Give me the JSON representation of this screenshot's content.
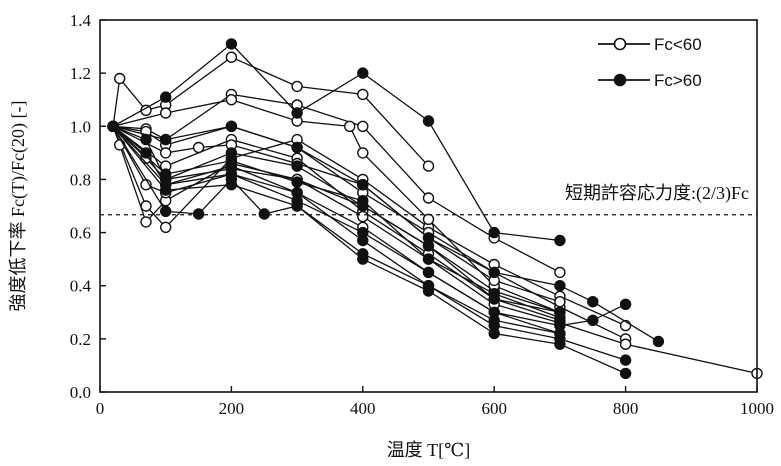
{
  "chart_data": {
    "type": "line",
    "title": "",
    "xlabel": "温度 T[℃]",
    "ylabel": "強度低下率 Fc(T)/Fc(20) [-]",
    "xlim": [
      0,
      1000
    ],
    "ylim": [
      0,
      1.4
    ],
    "xticks": [
      0,
      200,
      400,
      600,
      800,
      1000
    ],
    "yticks": [
      0.0,
      0.2,
      0.4,
      0.6,
      0.8,
      1.0,
      1.2,
      1.4
    ],
    "grid": false,
    "legend_position": "top-right",
    "legend": [
      {
        "label": "Fc<60",
        "marker": "open-circle"
      },
      {
        "label": "Fc>60",
        "marker": "filled-circle"
      }
    ],
    "reference_line": {
      "y": 0.667,
      "style": "dashed",
      "label": "短期許容応力度:(2/3)Fc"
    },
    "series": [
      {
        "group": "Fc<60",
        "x": [
          20,
          30,
          70,
          100,
          200,
          300,
          400,
          500
        ],
        "y": [
          1.0,
          1.18,
          1.06,
          1.08,
          1.26,
          1.15,
          1.12,
          0.85
        ]
      },
      {
        "group": "Fc<60",
        "x": [
          20,
          70,
          100,
          200,
          300,
          400,
          500,
          600,
          700
        ],
        "y": [
          1.0,
          0.99,
          0.95,
          1.12,
          1.08,
          1.0,
          0.73,
          0.58,
          0.45
        ]
      },
      {
        "group": "Fc<60",
        "x": [
          20,
          70,
          100,
          200,
          300,
          400,
          500,
          600,
          700,
          800
        ],
        "y": [
          1.0,
          0.7,
          0.62,
          0.88,
          0.95,
          0.8,
          0.62,
          0.48,
          0.36,
          0.25
        ]
      },
      {
        "group": "Fc<60",
        "x": [
          20,
          30,
          70,
          100,
          200,
          300,
          400,
          500,
          600,
          700
        ],
        "y": [
          1.0,
          0.93,
          0.64,
          0.72,
          0.86,
          0.8,
          0.7,
          0.55,
          0.38,
          0.3
        ]
      },
      {
        "group": "Fc<60",
        "x": [
          20,
          70,
          100,
          200,
          300,
          400,
          500,
          600,
          700,
          800
        ],
        "y": [
          1.0,
          0.98,
          0.93,
          1.0,
          0.92,
          0.75,
          0.6,
          0.45,
          0.32,
          0.2
        ]
      },
      {
        "group": "Fc<60",
        "x": [
          20,
          100,
          200,
          300,
          400,
          500,
          600,
          700
        ],
        "y": [
          1.0,
          0.85,
          0.95,
          0.88,
          0.68,
          0.52,
          0.35,
          0.27
        ]
      },
      {
        "group": "Fc<60",
        "x": [
          20,
          70,
          100,
          200,
          300,
          400,
          500,
          600,
          700
        ],
        "y": [
          1.0,
          0.78,
          0.75,
          0.82,
          0.75,
          0.62,
          0.45,
          0.3,
          0.22
        ]
      },
      {
        "group": "Fc<60",
        "x": [
          20,
          100,
          200,
          300,
          380,
          400,
          500,
          600,
          700
        ],
        "y": [
          1.0,
          1.05,
          1.1,
          1.02,
          1.0,
          0.9,
          0.65,
          0.4,
          0.3
        ]
      },
      {
        "group": "Fc<60",
        "x": [
          20,
          100,
          150,
          200,
          300,
          400,
          500,
          600,
          700
        ],
        "y": [
          1.0,
          0.9,
          0.92,
          0.93,
          0.86,
          0.78,
          0.58,
          0.42,
          0.34
        ]
      },
      {
        "group": "Fc<60",
        "x": [
          20,
          70,
          100,
          200,
          300,
          400,
          500,
          600,
          700,
          800,
          1000
        ],
        "y": [
          1.0,
          0.88,
          0.8,
          0.84,
          0.8,
          0.66,
          0.5,
          0.33,
          0.26,
          0.18,
          0.07
        ]
      },
      {
        "group": "Fc>60",
        "x": [
          20,
          100,
          200,
          300,
          400,
          500,
          600,
          700
        ],
        "y": [
          1.0,
          1.11,
          1.31,
          1.05,
          1.2,
          1.02,
          0.6,
          0.57
        ]
      },
      {
        "group": "Fc>60",
        "x": [
          20,
          70,
          100,
          200,
          300,
          400,
          500,
          600,
          700,
          800
        ],
        "y": [
          1.0,
          0.9,
          0.78,
          0.85,
          0.75,
          0.57,
          0.4,
          0.25,
          0.2,
          0.12
        ]
      },
      {
        "group": "Fc>60",
        "x": [
          20,
          100,
          150,
          200,
          250,
          300,
          400,
          500,
          600,
          700,
          800
        ],
        "y": [
          1.0,
          0.68,
          0.67,
          0.8,
          0.67,
          0.7,
          0.5,
          0.38,
          0.22,
          0.18,
          0.07
        ]
      },
      {
        "group": "Fc>60",
        "x": [
          20,
          100,
          200,
          300,
          400,
          500,
          600,
          700,
          750,
          850
        ],
        "y": [
          1.0,
          0.95,
          1.0,
          0.92,
          0.78,
          0.58,
          0.45,
          0.4,
          0.34,
          0.19
        ]
      },
      {
        "group": "Fc>60",
        "x": [
          20,
          70,
          100,
          200,
          300,
          400,
          500,
          600,
          700
        ],
        "y": [
          1.0,
          0.95,
          0.8,
          0.9,
          0.85,
          0.7,
          0.55,
          0.35,
          0.3
        ]
      },
      {
        "group": "Fc>60",
        "x": [
          20,
          100,
          200,
          300,
          400,
          500,
          600,
          700,
          750,
          800
        ],
        "y": [
          1.0,
          0.78,
          0.82,
          0.72,
          0.6,
          0.45,
          0.3,
          0.25,
          0.27,
          0.33
        ]
      },
      {
        "group": "Fc>60",
        "x": [
          20,
          100,
          200,
          300,
          400,
          500,
          600,
          700
        ],
        "y": [
          1.0,
          0.82,
          0.87,
          0.79,
          0.72,
          0.5,
          0.37,
          0.28
        ]
      },
      {
        "group": "Fc>60",
        "x": [
          20,
          100,
          200,
          300,
          400,
          500,
          600,
          700
        ],
        "y": [
          1.0,
          0.76,
          0.78,
          0.7,
          0.52,
          0.4,
          0.27,
          0.22
        ]
      }
    ]
  }
}
